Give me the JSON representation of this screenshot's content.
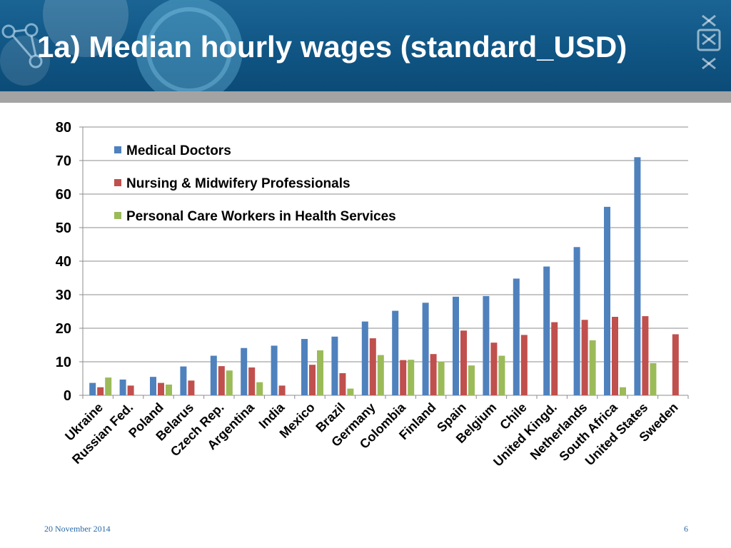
{
  "slide": {
    "title": "1a) Median hourly wages (standard_USD)",
    "date": "20 November 2014",
    "page_number": "6"
  },
  "colors": {
    "header_bg": "#0f5483",
    "series": [
      "#4f81bd",
      "#c0504d",
      "#9bbb59"
    ]
  },
  "chart_data": {
    "type": "bar",
    "title": "",
    "xlabel": "",
    "ylabel": "",
    "ylim": [
      0,
      80
    ],
    "yticks": [
      0,
      10,
      20,
      30,
      40,
      50,
      60,
      70,
      80
    ],
    "grid": true,
    "legend_position": "top-left",
    "categories": [
      "Ukraine",
      "Russian Fed.",
      "Poland",
      "Belarus",
      "Czech Rep.",
      "Argentina",
      "India",
      "Mexico",
      "Brazil",
      "Germany",
      "Colombia",
      "Finland",
      "Spain",
      "Belgium",
      "Chile",
      "United Kingd.",
      "Netherlands",
      "South Africa",
      "United States",
      "Sweden"
    ],
    "series": [
      {
        "name": "Medical Doctors",
        "color": "#4f81bd",
        "values": [
          3.7,
          4.7,
          5.5,
          8.6,
          11.8,
          14.1,
          14.8,
          16.8,
          17.5,
          22.0,
          25.2,
          27.6,
          29.4,
          29.6,
          34.8,
          38.4,
          44.2,
          56.2,
          71.0,
          null
        ]
      },
      {
        "name": "Nursing & Midwifery Professionals",
        "color": "#c0504d",
        "values": [
          2.4,
          2.9,
          3.7,
          4.4,
          8.7,
          8.3,
          2.9,
          9.1,
          6.6,
          17.0,
          10.5,
          12.3,
          19.3,
          15.7,
          18.0,
          21.8,
          22.5,
          23.4,
          23.6,
          18.2
        ]
      },
      {
        "name": "Personal Care Workers in Health Services",
        "color": "#9bbb59",
        "values": [
          5.3,
          null,
          3.2,
          null,
          7.4,
          3.9,
          null,
          13.4,
          2.0,
          12.0,
          10.6,
          10.1,
          8.9,
          11.8,
          null,
          null,
          16.4,
          2.4,
          9.6,
          null
        ]
      }
    ]
  }
}
